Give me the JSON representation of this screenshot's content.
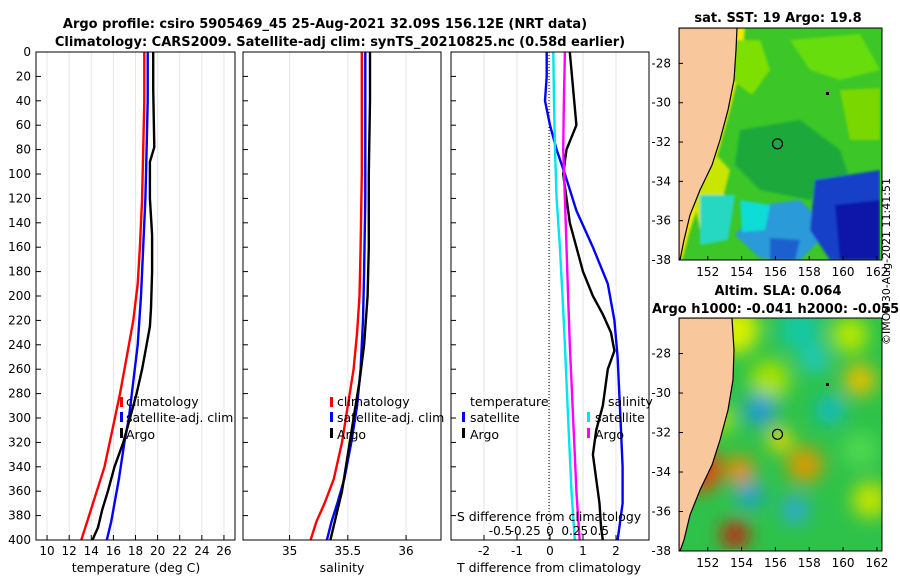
{
  "figure": {
    "title_line1": "Argo profile: csiro 5905469_45 25-Aug-2021 32.09S 156.12E (NRT data)",
    "title_line2": "Climatology: CARS2009. Satellite-adj clim: synTS_20210825.nc (0.58d earlier)",
    "timestamp": "©IMOS 30-Aug-2021 11:41:51",
    "colors": {
      "clim": "#ff0000",
      "sat": "#0000ff",
      "argo": "#000000",
      "sal_sat": "#00e5ee",
      "sal_argo": "#ff00ff"
    }
  },
  "chart_data": [
    {
      "type": "line",
      "id": "temperature",
      "xlabel": "temperature (deg C)",
      "ylabel": "",
      "xlim": [
        9,
        27
      ],
      "ylim": [
        0,
        400
      ],
      "xticks": [
        10,
        12,
        14,
        16,
        18,
        20,
        22,
        24,
        26
      ],
      "yticks": [
        0,
        20,
        40,
        60,
        80,
        100,
        120,
        140,
        160,
        180,
        200,
        220,
        240,
        260,
        280,
        300,
        320,
        340,
        360,
        380,
        400
      ],
      "series": [
        {
          "name": "climatology",
          "color": "#ff0000",
          "x": [
            18.8,
            18.8,
            18.7,
            18.6,
            18.4,
            18.2,
            17.8,
            17.2,
            16.6,
            15.9,
            15.2,
            14.5,
            13.8,
            13.1
          ],
          "y": [
            0,
            40,
            80,
            120,
            160,
            190,
            220,
            250,
            280,
            310,
            340,
            360,
            380,
            400
          ]
        },
        {
          "name": "satellite-adj. clim",
          "color": "#0000ff",
          "x": [
            19.1,
            19.1,
            19.0,
            18.9,
            18.7,
            18.5,
            18.2,
            17.8,
            17.4,
            17.0,
            16.5,
            16.1,
            15.8,
            15.4
          ],
          "y": [
            0,
            40,
            80,
            120,
            160,
            200,
            240,
            270,
            300,
            320,
            350,
            370,
            385,
            400
          ]
        },
        {
          "name": "Argo",
          "color": "#000000",
          "x": [
            19.6,
            19.6,
            19.7,
            19.3,
            19.3,
            19.5,
            19.5,
            19.4,
            19.3,
            19.0,
            18.6,
            18.1,
            17.5,
            16.9,
            16.1,
            15.5,
            15.0,
            14.6,
            14.1
          ],
          "y": [
            0,
            30,
            78,
            90,
            120,
            150,
            180,
            210,
            225,
            240,
            260,
            280,
            300,
            320,
            340,
            360,
            375,
            390,
            400
          ]
        }
      ],
      "legend": {
        "position": "middle-right",
        "entries": [
          "climatology",
          "satellite-adj. clim",
          "Argo"
        ]
      }
    },
    {
      "type": "line",
      "id": "salinity",
      "xlabel": "salinity",
      "ylabel": "",
      "xlim": [
        34.6,
        36.3
      ],
      "ylim": [
        0,
        400
      ],
      "xticks": [
        35,
        35.5,
        36
      ],
      "xtick_labels": [
        "35",
        "35.5",
        "36"
      ],
      "series": [
        {
          "name": "climatology",
          "color": "#ff0000",
          "x": [
            35.62,
            35.62,
            35.62,
            35.61,
            35.6,
            35.58,
            35.55,
            35.5,
            35.45,
            35.38,
            35.3,
            35.23,
            35.18
          ],
          "y": [
            0,
            40,
            100,
            160,
            200,
            230,
            260,
            290,
            320,
            350,
            370,
            385,
            400
          ]
        },
        {
          "name": "satellite-adj. clim",
          "color": "#0000ff",
          "x": [
            35.65,
            35.65,
            35.65,
            35.64,
            35.63,
            35.61,
            35.58,
            35.53,
            35.47,
            35.41,
            35.36,
            35.32
          ],
          "y": [
            0,
            60,
            120,
            180,
            220,
            260,
            290,
            320,
            350,
            370,
            385,
            400
          ]
        },
        {
          "name": "Argo",
          "color": "#000000",
          "x": [
            35.69,
            35.69,
            35.68,
            35.68,
            35.67,
            35.64,
            35.6,
            35.55,
            35.5,
            35.45,
            35.4,
            35.35
          ],
          "y": [
            0,
            40,
            100,
            160,
            200,
            240,
            270,
            300,
            330,
            360,
            380,
            400
          ]
        }
      ],
      "legend": {
        "position": "middle-right",
        "entries": [
          "climatology",
          "satellite-adj. clim",
          "Argo"
        ]
      }
    },
    {
      "type": "line",
      "id": "difference",
      "xlabel": "T difference from climatology",
      "xlabel_top": "S difference from climatology",
      "ylabel": "",
      "xlim": [
        -3,
        3
      ],
      "ylim": [
        0,
        400
      ],
      "xticks": [
        -2,
        -1,
        0,
        1,
        2
      ],
      "xtick_labels": [
        "-2",
        "-1",
        "0",
        "1",
        "2"
      ],
      "xticks_top": [
        -1.5,
        -0.75,
        0,
        0.75,
        1.5
      ],
      "xtick_labels_top": [
        "-0.5",
        "-0.25",
        "0",
        "0.25",
        "0.5"
      ],
      "series": [
        {
          "name": "temperature satellite",
          "color": "#0000ff",
          "x": [
            -0.1,
            -0.1,
            -0.15,
            0.0,
            0.2,
            0.45,
            0.8,
            1.3,
            1.75,
            1.95,
            2.05,
            2.1,
            2.15,
            2.2,
            2.2,
            2.1,
            2.05
          ],
          "y": [
            0,
            20,
            40,
            60,
            80,
            100,
            130,
            160,
            190,
            220,
            250,
            280,
            310,
            340,
            370,
            390,
            400
          ]
        },
        {
          "name": "temperature Argo",
          "color": "#000000",
          "x": [
            0.6,
            0.7,
            0.8,
            0.5,
            0.4,
            0.5,
            0.6,
            0.8,
            1.0,
            1.3,
            1.6,
            1.85,
            1.95,
            1.75,
            1.6,
            1.4,
            1.3,
            1.4,
            1.5,
            1.55,
            1.6
          ],
          "y": [
            0,
            30,
            60,
            80,
            100,
            120,
            140,
            160,
            180,
            200,
            215,
            230,
            245,
            260,
            290,
            310,
            330,
            350,
            370,
            390,
            400
          ]
        },
        {
          "name": "salinity satellite",
          "color": "#00e5ee",
          "x": [
            0.1,
            0.12,
            0.15,
            0.2,
            0.3,
            0.38,
            0.45,
            0.5,
            0.55,
            0.6,
            0.65,
            0.7,
            0.75
          ],
          "y": [
            0,
            40,
            80,
            120,
            160,
            200,
            240,
            270,
            300,
            330,
            360,
            380,
            400
          ]
        },
        {
          "name": "salinity Argo",
          "color": "#ff00ff",
          "x": [
            0.45,
            0.42,
            0.4,
            0.45,
            0.5,
            0.55,
            0.6,
            0.65,
            0.7,
            0.75,
            0.8,
            0.85,
            0.9
          ],
          "y": [
            0,
            40,
            80,
            120,
            160,
            200,
            240,
            270,
            300,
            330,
            360,
            380,
            400
          ]
        }
      ],
      "legend": {
        "position": "middle",
        "left_header": "temperature",
        "right_header": "salinity",
        "left_entries": [
          "satellite",
          "Argo"
        ],
        "right_entries": [
          "satellite",
          "Argo"
        ]
      }
    },
    {
      "type": "heatmap",
      "id": "sst_map",
      "title": "sat. SST: 19 Argo: 19.8",
      "xlim": [
        150.3,
        162.3
      ],
      "ylim": [
        -38,
        -26.2
      ],
      "xticks": [
        152,
        154,
        156,
        158,
        160,
        162
      ],
      "yticks": [
        -28,
        -30,
        -32,
        -34,
        -36,
        -38
      ],
      "float_position": [
        156.12,
        -32.09
      ]
    },
    {
      "type": "heatmap",
      "id": "sla_map",
      "title_line1": "Altim. SLA: 0.064",
      "title_line2": "Argo h1000: -0.041 h2000: -0.055",
      "xlim": [
        150.3,
        162.3
      ],
      "ylim": [
        -38,
        -26.2
      ],
      "xticks": [
        152,
        154,
        156,
        158,
        160,
        162
      ],
      "yticks": [
        -28,
        -30,
        -32,
        -34,
        -36,
        -38
      ],
      "float_position": [
        156.12,
        -32.09
      ]
    }
  ]
}
